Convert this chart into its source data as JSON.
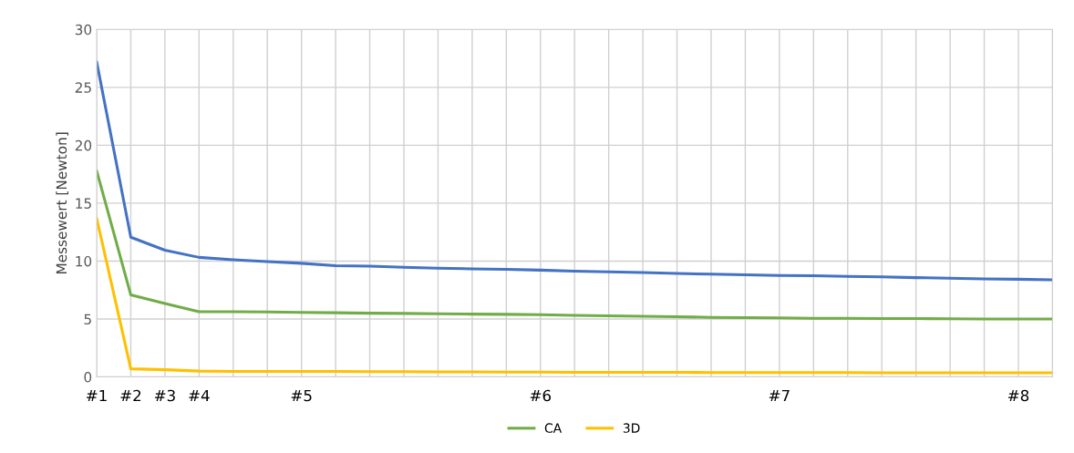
{
  "chart_data": {
    "type": "line",
    "ylabel": "Messewert [Newton]",
    "categories": [
      "#1",
      "#2",
      "#3",
      "#4",
      null,
      null,
      "#5",
      null,
      null,
      null,
      null,
      null,
      null,
      "#6",
      null,
      null,
      null,
      null,
      null,
      null,
      "#7",
      null,
      null,
      null,
      null,
      null,
      null,
      "#8",
      null
    ],
    "series": [
      {
        "color": "#4472c4",
        "values": [
          27.2,
          12.06,
          10.94,
          10.32,
          10.12,
          9.95,
          9.81,
          9.6,
          9.56,
          9.47,
          9.39,
          9.33,
          9.28,
          9.22,
          9.13,
          9.07,
          9.01,
          8.93,
          8.87,
          8.82,
          8.76,
          8.74,
          8.68,
          8.63,
          8.57,
          8.52,
          8.46,
          8.43,
          8.38
        ]
      },
      {
        "name": "CA",
        "color": "#70ad47",
        "values": [
          17.8,
          7.08,
          6.33,
          5.62,
          5.62,
          5.6,
          5.57,
          5.54,
          5.5,
          5.48,
          5.45,
          5.42,
          5.4,
          5.37,
          5.32,
          5.28,
          5.23,
          5.2,
          5.14,
          5.11,
          5.09,
          5.06,
          5.05,
          5.03,
          5.03,
          5.02,
          5.0,
          5.0,
          5.0
        ]
      },
      {
        "name": "3D",
        "color": "#ffc000",
        "values": [
          13.7,
          0.7,
          0.62,
          0.5,
          0.48,
          0.48,
          0.47,
          0.47,
          0.46,
          0.45,
          0.44,
          0.43,
          0.42,
          0.41,
          0.4,
          0.4,
          0.39,
          0.39,
          0.38,
          0.38,
          0.37,
          0.37,
          0.37,
          0.36,
          0.36,
          0.36,
          0.36,
          0.36,
          0.36
        ]
      }
    ],
    "ylim": [
      0,
      30
    ],
    "yticks": [
      0,
      5,
      10,
      15,
      20,
      25,
      30
    ],
    "grid": true,
    "legend": "bottom"
  }
}
